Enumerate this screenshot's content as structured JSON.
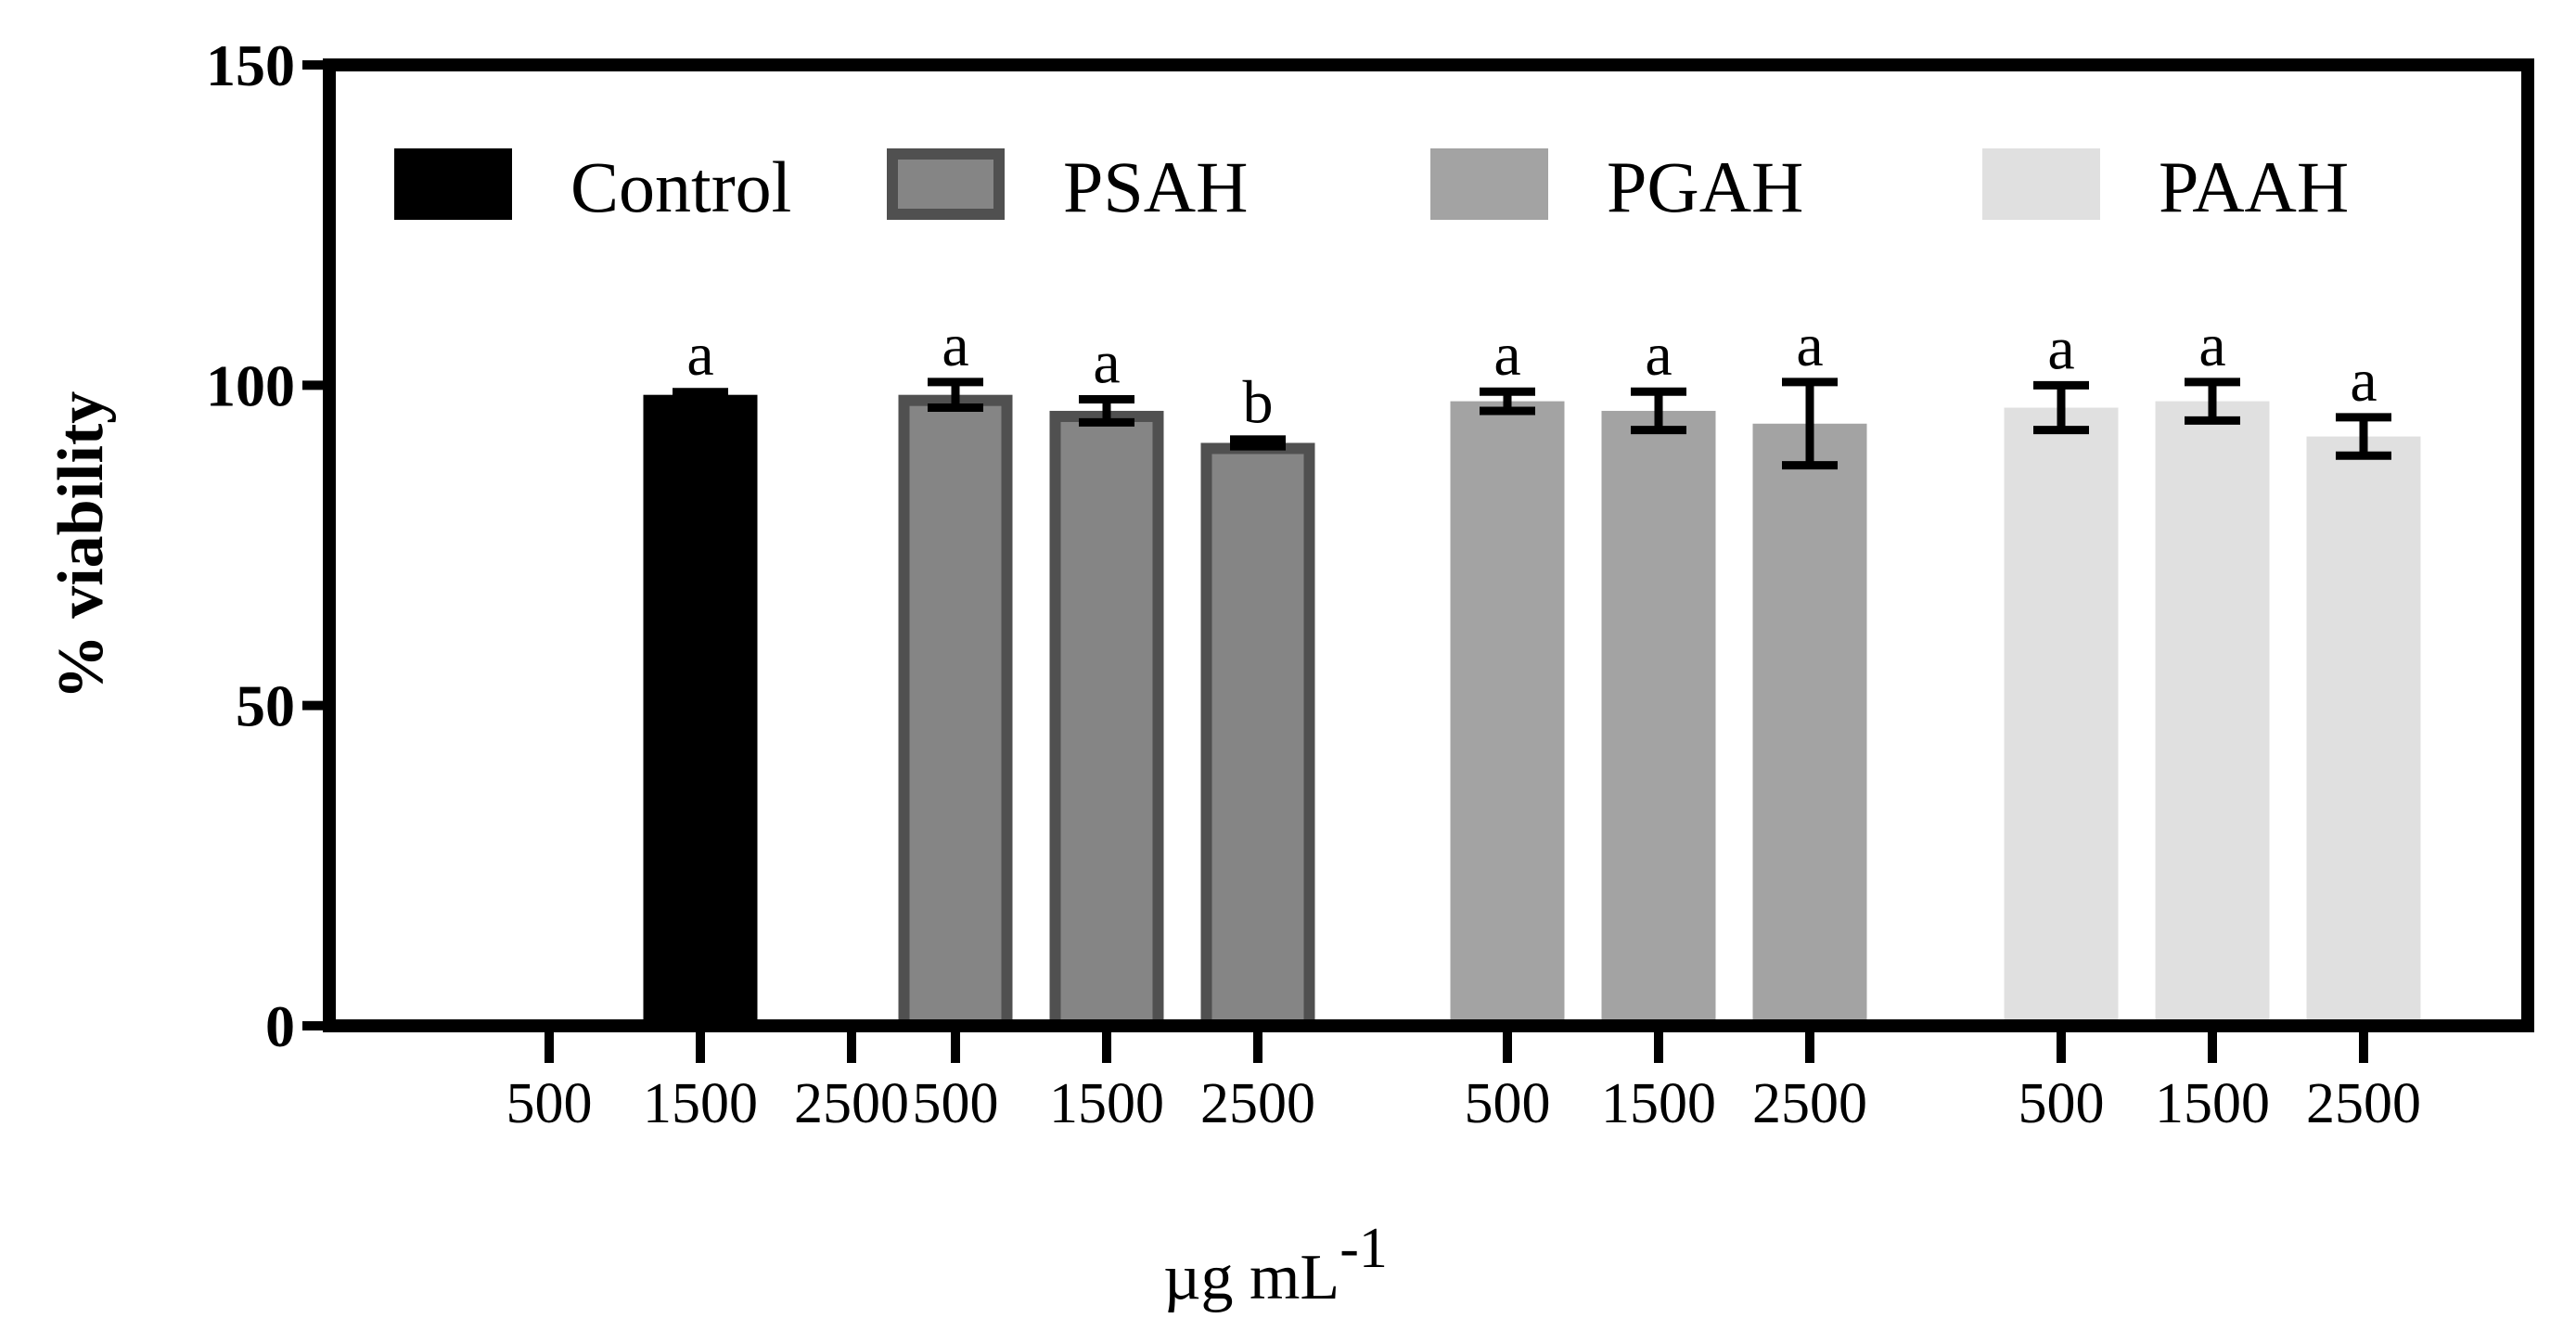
{
  "chart_data": {
    "type": "bar",
    "title": "",
    "ylabel": "% viability",
    "xlabel": "µg mL",
    "xlabel_superscript": "-1",
    "ylim": [
      0,
      150
    ],
    "yticks": [
      "0",
      "50",
      "100",
      "150"
    ],
    "legend_position": "top",
    "groups": [
      {
        "name": "Control",
        "color": "#000000",
        "border": "#000000",
        "categories": [
          "500",
          "1500",
          "2500"
        ],
        "values": [
          null,
          98.5,
          null
        ],
        "errors": [
          null,
          0.5,
          null
        ],
        "labels": [
          "",
          "a",
          ""
        ]
      },
      {
        "name": "PSAH",
        "color": "#858585",
        "border": "#505050",
        "categories": [
          "500",
          "1500",
          "2500"
        ],
        "values": [
          98.5,
          96,
          91
        ],
        "errors": [
          2,
          1.8,
          0.6
        ],
        "labels": [
          "a",
          "a",
          "b"
        ]
      },
      {
        "name": "PGAH",
        "color": "#a3a3a3",
        "border": "#a3a3a3",
        "categories": [
          "500",
          "1500",
          "2500"
        ],
        "values": [
          97.5,
          96,
          94
        ],
        "errors": [
          1.5,
          3,
          6.5
        ],
        "labels": [
          "a",
          "a",
          "a"
        ]
      },
      {
        "name": "PAAH",
        "color": "#e0e0e0",
        "border": "#e0e0e0",
        "categories": [
          "500",
          "1500",
          "2500"
        ],
        "values": [
          96.5,
          97.5,
          92
        ],
        "errors": [
          3.5,
          3,
          3
        ],
        "labels": [
          "a",
          "a",
          "a"
        ]
      }
    ]
  }
}
